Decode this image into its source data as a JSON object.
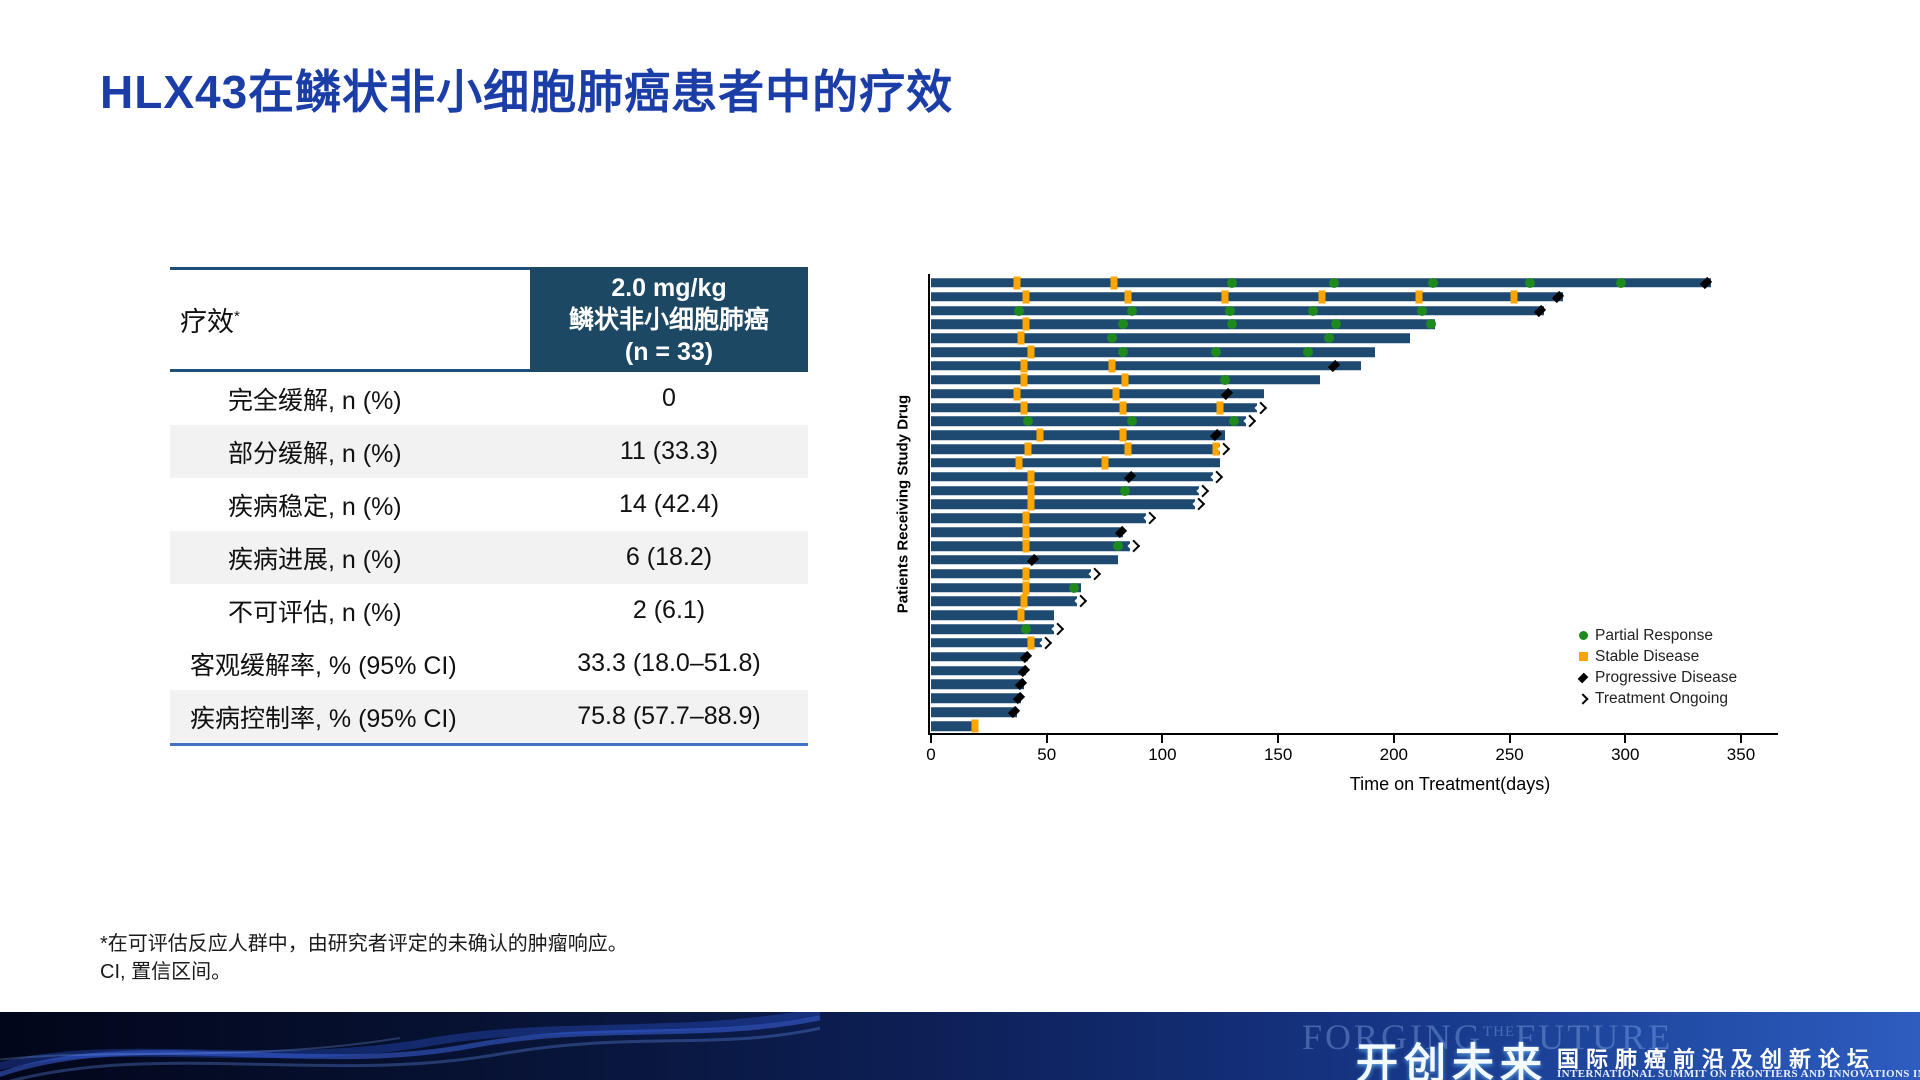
{
  "slide": {
    "title": "HLX43在鳞状非小细胞肺癌患者中的疗效",
    "footnotes": [
      "*在可评估反应人群中，由研究者评定的未确认的肿瘤响应。",
      "CI, 置信区间。"
    ]
  },
  "table": {
    "header": {
      "col1": "疗效",
      "col1_sup": "*",
      "col2_lines": [
        "2.0 mg/kg",
        "鳞状非小细胞肺癌",
        "(n = 33)"
      ]
    },
    "rows": [
      {
        "label": "完全缓解, n (%)",
        "value": "0"
      },
      {
        "label": "部分缓解, n (%)",
        "value": "11 (33.3)"
      },
      {
        "label": "疾病稳定, n (%)",
        "value": "14 (42.4)"
      },
      {
        "label": "疾病进展, n (%)",
        "value": "6 (18.2)"
      },
      {
        "label": "不可评估, n (%)",
        "value": "2 (6.1)"
      },
      {
        "label": "客观缓解率, % (95% CI)",
        "value": "33.3 (18.0–51.8)"
      },
      {
        "label": "疾病控制率, % (95% CI)",
        "value": "75.8 (57.7–88.9)"
      }
    ]
  },
  "chart_data": {
    "type": "bar",
    "subtype": "swimmer-plot",
    "xlabel": "Time on Treatment(days)",
    "ylabel": "Patients Receiving Study Drug",
    "xlim": [
      0,
      366
    ],
    "xticks": [
      0,
      50,
      100,
      150,
      200,
      250,
      300,
      350
    ],
    "grid": false,
    "bar_color": "#1e4a72",
    "marker_colors": {
      "P": "#1e8a1e",
      "S": "#ffa500",
      "D": "#000000"
    },
    "legend": [
      {
        "label": "Partial Response",
        "marker": "p",
        "color": "#1e8a1e"
      },
      {
        "label": "Stable Disease",
        "marker": "s",
        "color": "#ffa500"
      },
      {
        "label": "Progressive Disease",
        "marker": "d",
        "color": "#000000"
      },
      {
        "label": "Treatment Ongoing",
        "marker": "a",
        "color": "#000000"
      }
    ],
    "patients": [
      {
        "length": 337,
        "end": "none",
        "markers": [
          [
            "S",
            37
          ],
          [
            "S",
            79
          ],
          [
            "P",
            130
          ],
          [
            "P",
            174
          ],
          [
            "P",
            217
          ],
          [
            "P",
            259
          ],
          [
            "P",
            298
          ],
          [
            "D",
            335
          ]
        ]
      },
      {
        "length": 273,
        "end": "none",
        "markers": [
          [
            "S",
            41
          ],
          [
            "S",
            85
          ],
          [
            "S",
            127
          ],
          [
            "S",
            169
          ],
          [
            "S",
            211
          ],
          [
            "S",
            252
          ],
          [
            "D",
            271
          ]
        ]
      },
      {
        "length": 265,
        "end": "none",
        "markers": [
          [
            "P",
            38
          ],
          [
            "P",
            87
          ],
          [
            "P",
            129
          ],
          [
            "P",
            165
          ],
          [
            "P",
            212
          ],
          [
            "D",
            263
          ]
        ]
      },
      {
        "length": 218,
        "end": "none",
        "markers": [
          [
            "S",
            41
          ],
          [
            "P",
            83
          ],
          [
            "P",
            130
          ],
          [
            "P",
            175
          ],
          [
            "P",
            216
          ]
        ]
      },
      {
        "length": 207,
        "end": "none",
        "markers": [
          [
            "S",
            39
          ],
          [
            "P",
            78
          ],
          [
            "P",
            172
          ]
        ]
      },
      {
        "length": 192,
        "end": "none",
        "markers": [
          [
            "S",
            43
          ],
          [
            "P",
            83
          ],
          [
            "P",
            123
          ],
          [
            "P",
            163
          ]
        ]
      },
      {
        "length": 186,
        "end": "none",
        "markers": [
          [
            "S",
            40
          ],
          [
            "S",
            78
          ],
          [
            "D",
            174
          ]
        ]
      },
      {
        "length": 168,
        "end": "none",
        "markers": [
          [
            "S",
            40
          ],
          [
            "S",
            84
          ],
          [
            "P",
            127
          ]
        ]
      },
      {
        "length": 144,
        "end": "none",
        "markers": [
          [
            "S",
            37
          ],
          [
            "S",
            80
          ],
          [
            "D",
            128
          ]
        ]
      },
      {
        "length": 141,
        "end": "arrow",
        "markers": [
          [
            "S",
            40
          ],
          [
            "S",
            83
          ],
          [
            "S",
            125
          ]
        ]
      },
      {
        "length": 136,
        "end": "arrow",
        "markers": [
          [
            "P",
            42
          ],
          [
            "P",
            87
          ],
          [
            "P",
            131
          ]
        ]
      },
      {
        "length": 127,
        "end": "none",
        "markers": [
          [
            "S",
            47
          ],
          [
            "S",
            83
          ],
          [
            "D",
            123
          ]
        ]
      },
      {
        "length": 125,
        "end": "arrow",
        "markers": [
          [
            "S",
            42
          ],
          [
            "S",
            85
          ],
          [
            "S",
            123
          ]
        ]
      },
      {
        "length": 125,
        "end": "none",
        "markers": [
          [
            "S",
            38
          ],
          [
            "S",
            75
          ]
        ]
      },
      {
        "length": 122,
        "end": "arrow",
        "markers": [
          [
            "S",
            43
          ],
          [
            "D",
            86
          ]
        ]
      },
      {
        "length": 116,
        "end": "arrow",
        "markers": [
          [
            "S",
            43
          ],
          [
            "P",
            84
          ]
        ]
      },
      {
        "length": 114,
        "end": "arrow",
        "markers": [
          [
            "S",
            43
          ]
        ]
      },
      {
        "length": 93,
        "end": "arrow",
        "markers": [
          [
            "S",
            41
          ]
        ]
      },
      {
        "length": 83,
        "end": "none",
        "markers": [
          [
            "S",
            41
          ],
          [
            "D",
            82
          ]
        ]
      },
      {
        "length": 86,
        "end": "arrow",
        "markers": [
          [
            "S",
            41
          ],
          [
            "P",
            81
          ]
        ]
      },
      {
        "length": 81,
        "end": "none",
        "markers": [
          [
            "D",
            44
          ]
        ]
      },
      {
        "length": 69,
        "end": "arrow",
        "markers": [
          [
            "S",
            41
          ]
        ]
      },
      {
        "length": 65,
        "end": "none",
        "markers": [
          [
            "S",
            41
          ],
          [
            "P",
            62
          ]
        ]
      },
      {
        "length": 63,
        "end": "arrow",
        "markers": [
          [
            "S",
            40
          ]
        ]
      },
      {
        "length": 53,
        "end": "none",
        "markers": [
          [
            "S",
            39
          ]
        ]
      },
      {
        "length": 53,
        "end": "arrow",
        "markers": [
          [
            "P",
            41
          ]
        ]
      },
      {
        "length": 48,
        "end": "arrow",
        "markers": [
          [
            "S",
            43
          ]
        ]
      },
      {
        "length": 42,
        "end": "none",
        "markers": [
          [
            "D",
            41
          ]
        ]
      },
      {
        "length": 41,
        "end": "none",
        "markers": [
          [
            "D",
            40
          ]
        ]
      },
      {
        "length": 40,
        "end": "none",
        "markers": [
          [
            "D",
            39
          ]
        ]
      },
      {
        "length": 39,
        "end": "none",
        "markers": [
          [
            "D",
            38
          ]
        ]
      },
      {
        "length": 37,
        "end": "none",
        "markers": [
          [
            "D",
            36
          ]
        ]
      },
      {
        "length": 20,
        "end": "none",
        "markers": [
          [
            "S",
            19
          ]
        ]
      }
    ]
  },
  "footer": {
    "watermark_forging": "FORGING",
    "watermark_the": "THE",
    "watermark_future": "FUTURE",
    "logo_cn": "开创未来",
    "summit_cn": "国际肺癌前沿及创新论坛",
    "summit_en": "INTERNATIONAL SUMMIT ON FRONTIERS AND INNOVATIONS IN LUNG CANCER"
  }
}
